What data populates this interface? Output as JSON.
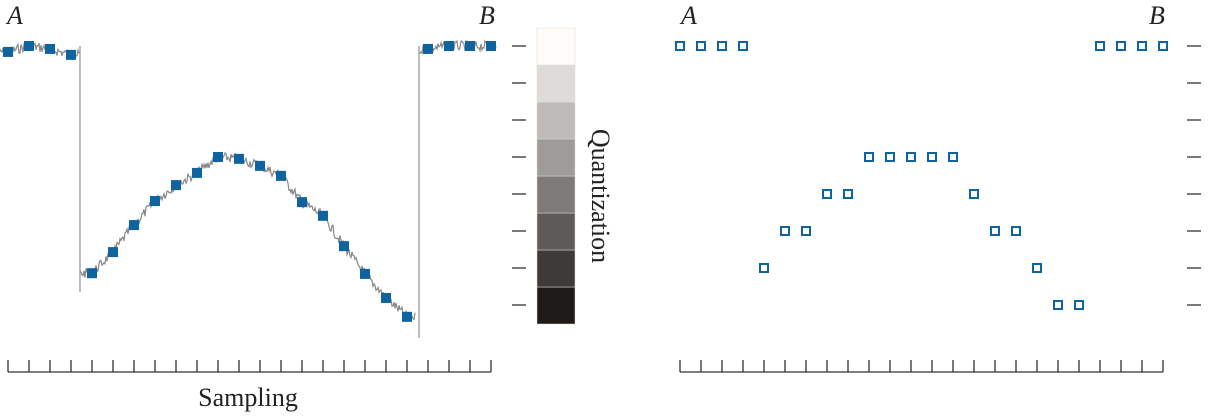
{
  "chart_data": [
    {
      "type": "scatter",
      "start_label": "A",
      "end_label": "B",
      "x_label": "Sampling",
      "y_label": "Quantization",
      "values": [
        6.84,
        7.0,
        6.92,
        6.76,
        0.86,
        1.43,
        2.16,
        2.81,
        3.24,
        3.57,
        4.0,
        3.95,
        3.76,
        3.49,
        2.78,
        2.41,
        1.59,
        0.84,
        0.19,
        -0.32,
        6.92,
        7.0,
        7.0,
        7.0
      ],
      "color": "#0f64a0",
      "ylim": [
        -1,
        7.5
      ],
      "yticks": [
        0,
        1,
        2,
        3,
        4,
        5,
        6,
        7
      ]
    },
    {
      "type": "scatter-hollow",
      "start_label": "A",
      "end_label": "B",
      "values": [
        7,
        7,
        7,
        7,
        1,
        2,
        2,
        3,
        3,
        4,
        4,
        4,
        4,
        4,
        3,
        2,
        2,
        1,
        0,
        0,
        7,
        7,
        7,
        7
      ],
      "color": "#0f64a0",
      "ylim": [
        -1,
        7.5
      ],
      "yticks": [
        0,
        1,
        2,
        3,
        4,
        5,
        6,
        7
      ]
    }
  ]
}
